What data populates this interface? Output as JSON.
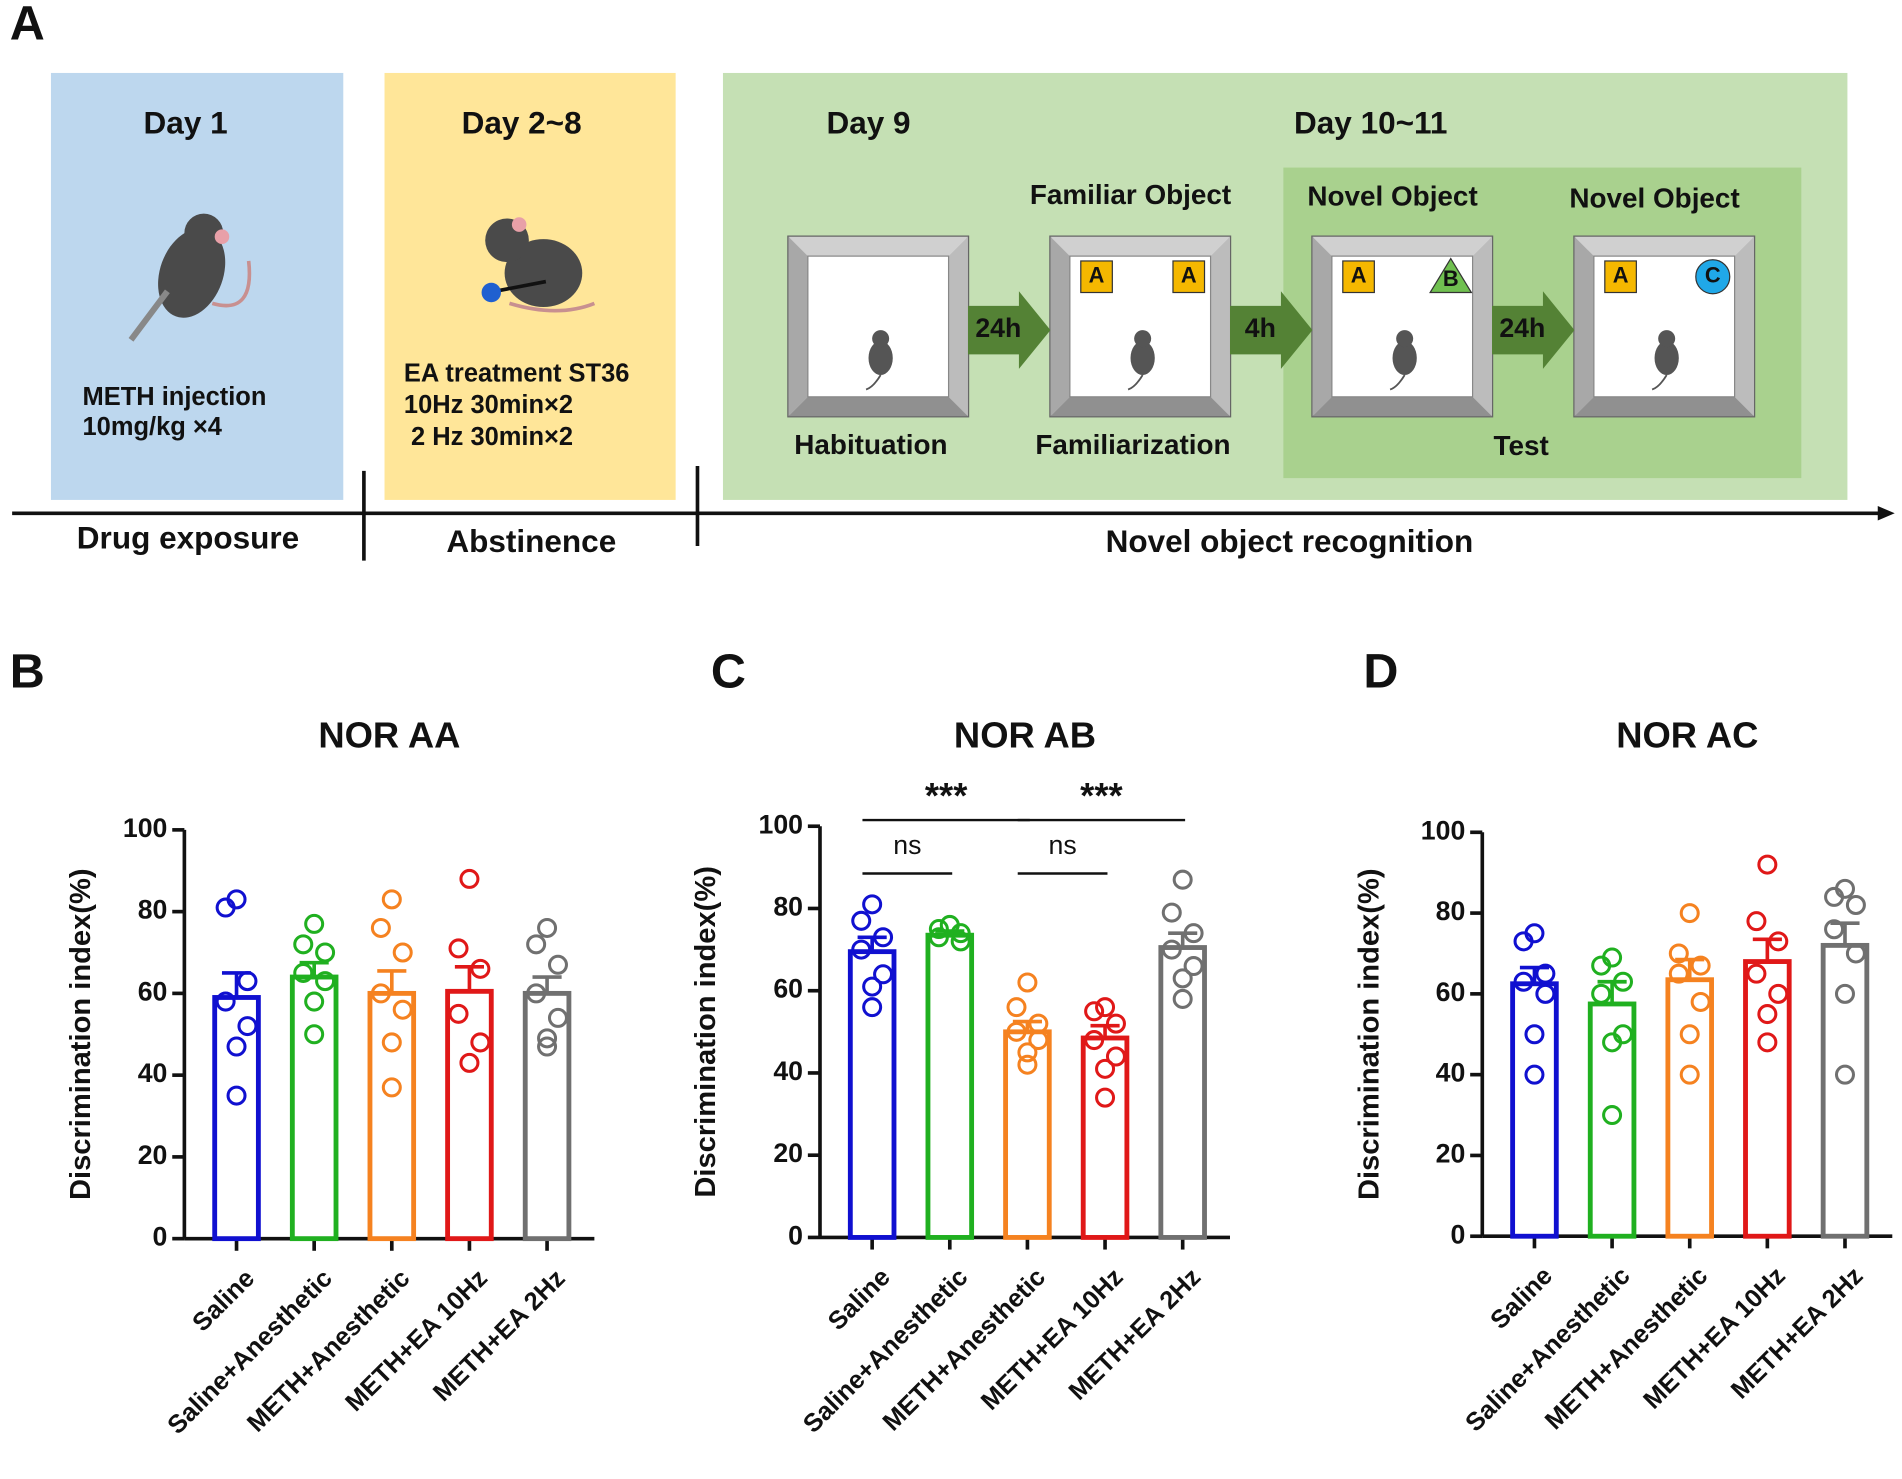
{
  "diagram": {
    "label": "A",
    "phases": [
      {
        "day": "Day 1",
        "lines": [
          "METH injection",
          "10mg/kg ×4"
        ],
        "stage": "Drug exposure"
      },
      {
        "day": "Day 2~8",
        "lines": [
          "EA treatment ST36",
          "10Hz 30min×2",
          " 2 Hz 30min×2"
        ],
        "stage": "Abstinence"
      }
    ],
    "days": [
      "Day 9",
      "Day 10~11"
    ],
    "arenas": [
      {
        "objects": [],
        "caption": "Habituation"
      },
      {
        "title": "Familiar Object",
        "objects": [
          "A",
          "A"
        ],
        "caption": "Familiarization"
      },
      {
        "title": "Novel Object",
        "objects": [
          "A",
          "B"
        ]
      },
      {
        "title": "Novel Object",
        "objects": [
          "A",
          "C"
        ]
      }
    ],
    "test_caption": "Test",
    "intervals": [
      "24h",
      "4h",
      "24h"
    ],
    "stage": "Novel object recognition"
  },
  "chart_data": [
    {
      "type": "bar",
      "label": "B",
      "title": "NOR AA",
      "ylabel": "Discrimination index(%)",
      "categories": [
        "Saline",
        "Saline+Anesthetic",
        "METH+Anesthetic",
        "METH+EA 10Hz",
        "METH+EA 2Hz"
      ],
      "colors": [
        "#1010d0",
        "#20b020",
        "#f58220",
        "#e01818",
        "#707070"
      ],
      "values": [
        59,
        64,
        60,
        60.5,
        60
      ],
      "errors": [
        6,
        3.5,
        5.5,
        6,
        4
      ],
      "points": [
        [
          83,
          81,
          63,
          58,
          52,
          47,
          35
        ],
        [
          77,
          72,
          70,
          65,
          63,
          58,
          50
        ],
        [
          83,
          76,
          70,
          60,
          56,
          48,
          37
        ],
        [
          88,
          71,
          66,
          55,
          48,
          43
        ],
        [
          76,
          72,
          67,
          60,
          54,
          49,
          47
        ]
      ],
      "ylim": [
        0,
        100
      ],
      "yticks": [
        0,
        20,
        40,
        60,
        80,
        100
      ]
    },
    {
      "type": "bar",
      "label": "C",
      "title": "NOR AB",
      "ylabel": "Discrimination index(%)",
      "categories": [
        "Saline",
        "Saline+Anesthetic",
        "METH+Anesthetic",
        "METH+EA 10Hz",
        "METH+EA 2Hz"
      ],
      "colors": [
        "#1010d0",
        "#20b020",
        "#f58220",
        "#e01818",
        "#707070"
      ],
      "values": [
        69.5,
        73.5,
        50,
        48.5,
        70.5
      ],
      "errors": [
        3.5,
        1,
        2.5,
        3,
        3.5
      ],
      "points": [
        [
          81,
          77,
          73,
          70,
          64,
          61,
          56
        ],
        [
          76,
          75,
          74,
          73,
          72
        ],
        [
          62,
          56,
          52,
          50,
          48,
          45,
          42
        ],
        [
          56,
          55,
          52,
          48,
          44,
          41,
          34
        ],
        [
          87,
          79,
          74,
          70,
          66,
          63,
          58
        ]
      ],
      "annotations": [
        {
          "text": "***",
          "from": 0,
          "to": 2
        },
        {
          "text": "ns",
          "from": 0,
          "to": 1
        },
        {
          "text": "***",
          "from": 2,
          "to": 4
        },
        {
          "text": "ns",
          "from": 2,
          "to": 3
        }
      ],
      "ylim": [
        0,
        100
      ],
      "yticks": [
        0,
        20,
        40,
        60,
        80,
        100
      ]
    },
    {
      "type": "bar",
      "label": "D",
      "title": "NOR AC",
      "ylabel": "Discrimination index(%)",
      "categories": [
        "Saline",
        "Saline+Anesthetic",
        "METH+Anesthetic",
        "METH+EA 10Hz",
        "METH+EA 2Hz"
      ],
      "colors": [
        "#1010d0",
        "#20b020",
        "#f58220",
        "#e01818",
        "#707070"
      ],
      "values": [
        62.5,
        57.5,
        63.5,
        68,
        72
      ],
      "errors": [
        4,
        5.5,
        5,
        5.5,
        5.5
      ],
      "points": [
        [
          75,
          73,
          65,
          63,
          60,
          50,
          40
        ],
        [
          69,
          67,
          63,
          60,
          50,
          48,
          30
        ],
        [
          80,
          70,
          67,
          65,
          58,
          50,
          40
        ],
        [
          92,
          78,
          73,
          65,
          60,
          55,
          48
        ],
        [
          86,
          84,
          82,
          76,
          70,
          60,
          40
        ]
      ],
      "ylim": [
        0,
        100
      ],
      "yticks": [
        0,
        20,
        40,
        60,
        80,
        100
      ]
    }
  ]
}
